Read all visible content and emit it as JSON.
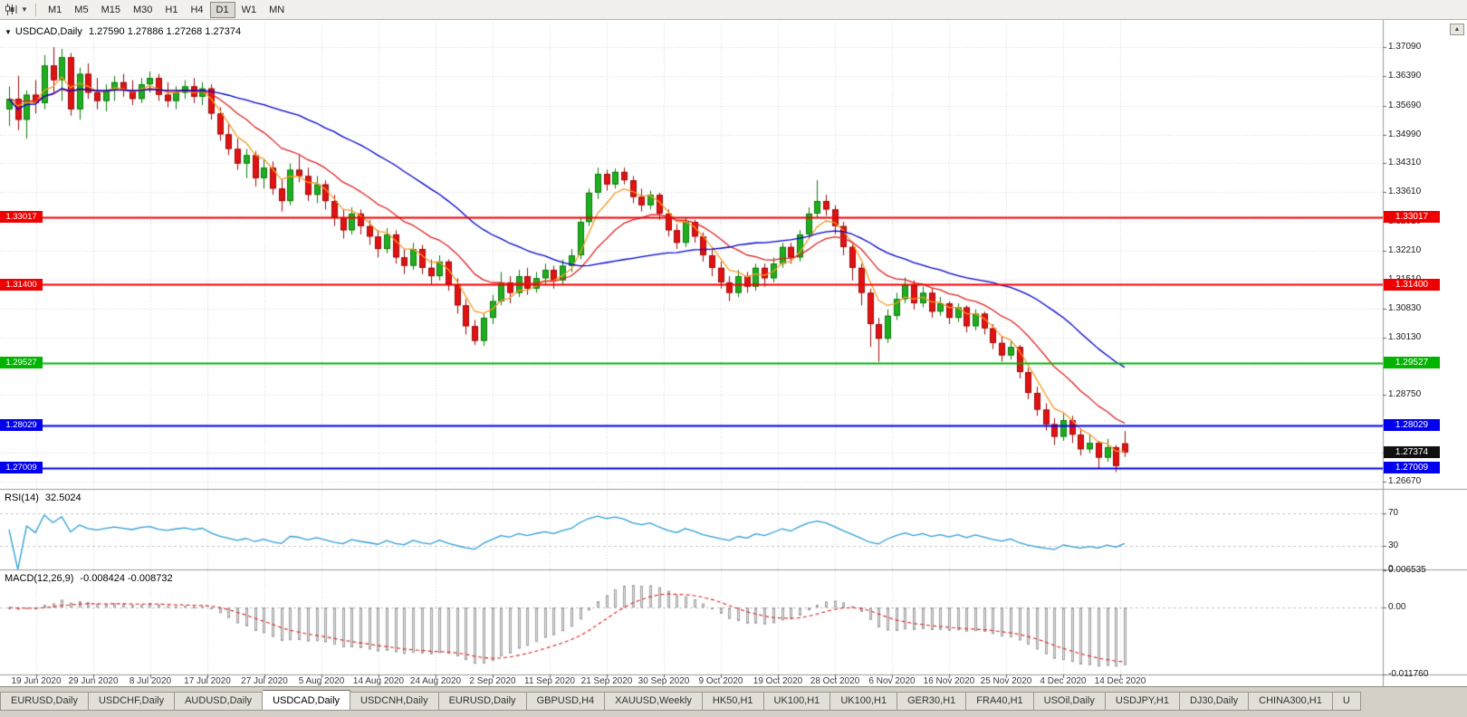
{
  "toolbar": {
    "timeframes": [
      "M1",
      "M5",
      "M15",
      "M30",
      "H1",
      "H4",
      "D1",
      "W1",
      "MN"
    ],
    "active": "D1"
  },
  "main_header": {
    "symbol": "USDCAD,Daily",
    "ohlc": "1.27590 1.27886 1.27268 1.27374"
  },
  "chart_data": {
    "type": "candlestick",
    "symbol": "USDCAD",
    "timeframe": "Daily",
    "ohlc_display": {
      "open": "1.27590",
      "high": "1.27886",
      "low": "1.27268",
      "close": "1.27374"
    },
    "x_axis_labels": [
      "19 Jun 2020",
      "29 Jun 2020",
      "8 Jul 2020",
      "17 Jul 2020",
      "27 Jul 2020",
      "5 Aug 2020",
      "14 Aug 2020",
      "24 Aug 2020",
      "2 Sep 2020",
      "11 Sep 2020",
      "21 Sep 2020",
      "30 Sep 2020",
      "9 Oct 2020",
      "19 Oct 2020",
      "28 Oct 2020",
      "6 Nov 2020",
      "16 Nov 2020",
      "25 Nov 2020",
      "4 Dec 2020",
      "14 Dec 2020"
    ],
    "y_axis_ticks": [
      "1.37090",
      "1.36390",
      "1.35690",
      "1.34990",
      "1.34310",
      "1.33610",
      "1.32910",
      "1.32210",
      "1.31510",
      "1.30830",
      "1.30130",
      "1.29430",
      "1.28750",
      "1.28050",
      "1.27370",
      "1.26670"
    ],
    "y_range": {
      "top": 1.377,
      "bottom": 1.265
    },
    "up_color": "#1fae1f",
    "down_color": "#e31212",
    "candles": [
      [
        1.356,
        1.3615,
        1.352,
        1.3585
      ],
      [
        1.3585,
        1.364,
        1.351,
        1.3535
      ],
      [
        1.3535,
        1.3605,
        1.349,
        1.3595
      ],
      [
        1.3595,
        1.363,
        1.355,
        1.3575
      ],
      [
        1.3575,
        1.369,
        1.356,
        1.3665
      ],
      [
        1.3665,
        1.3709,
        1.36,
        1.363
      ],
      [
        1.363,
        1.3705,
        1.358,
        1.3685
      ],
      [
        1.3685,
        1.3695,
        1.3545,
        1.356
      ],
      [
        1.356,
        1.366,
        1.3535,
        1.3645
      ],
      [
        1.3645,
        1.367,
        1.3585,
        1.36
      ],
      [
        1.36,
        1.3635,
        1.356,
        1.358
      ],
      [
        1.358,
        1.362,
        1.3555,
        1.3605
      ],
      [
        1.3605,
        1.364,
        1.358,
        1.3625
      ],
      [
        1.3625,
        1.3645,
        1.359,
        1.3605
      ],
      [
        1.3605,
        1.363,
        1.357,
        1.3585
      ],
      [
        1.3585,
        1.3635,
        1.3575,
        1.362
      ],
      [
        1.362,
        1.365,
        1.36,
        1.3635
      ],
      [
        1.3635,
        1.3645,
        1.358,
        1.3595
      ],
      [
        1.3595,
        1.3625,
        1.3565,
        1.358
      ],
      [
        1.358,
        1.3615,
        1.356,
        1.36
      ],
      [
        1.36,
        1.363,
        1.3585,
        1.3615
      ],
      [
        1.3615,
        1.3635,
        1.3575,
        1.359
      ],
      [
        1.359,
        1.3625,
        1.357,
        1.361
      ],
      [
        1.361,
        1.362,
        1.3535,
        1.355
      ],
      [
        1.355,
        1.3565,
        1.3485,
        1.35
      ],
      [
        1.35,
        1.3525,
        1.345,
        1.3465
      ],
      [
        1.3465,
        1.349,
        1.3415,
        1.343
      ],
      [
        1.343,
        1.3465,
        1.3395,
        1.345
      ],
      [
        1.345,
        1.346,
        1.3375,
        1.3395
      ],
      [
        1.3395,
        1.344,
        1.337,
        1.342
      ],
      [
        1.342,
        1.3435,
        1.3355,
        1.337
      ],
      [
        1.337,
        1.339,
        1.3315,
        1.334
      ],
      [
        1.334,
        1.343,
        1.333,
        1.3415
      ],
      [
        1.3415,
        1.345,
        1.3385,
        1.34
      ],
      [
        1.34,
        1.342,
        1.334,
        1.3355
      ],
      [
        1.3355,
        1.34,
        1.3335,
        1.338
      ],
      [
        1.338,
        1.339,
        1.332,
        1.334
      ],
      [
        1.334,
        1.3355,
        1.328,
        1.33
      ],
      [
        1.33,
        1.332,
        1.325,
        1.327
      ],
      [
        1.327,
        1.3325,
        1.326,
        1.331
      ],
      [
        1.331,
        1.332,
        1.326,
        1.328
      ],
      [
        1.328,
        1.3295,
        1.3235,
        1.3255
      ],
      [
        1.3255,
        1.327,
        1.3205,
        1.3225
      ],
      [
        1.3225,
        1.3275,
        1.3215,
        1.326
      ],
      [
        1.326,
        1.327,
        1.319,
        1.3205
      ],
      [
        1.3205,
        1.3225,
        1.3165,
        1.3185
      ],
      [
        1.3185,
        1.324,
        1.3175,
        1.3225
      ],
      [
        1.3225,
        1.3235,
        1.3165,
        1.318
      ],
      [
        1.318,
        1.32,
        1.314,
        1.316
      ],
      [
        1.316,
        1.321,
        1.315,
        1.3195
      ],
      [
        1.3195,
        1.32,
        1.3125,
        1.314
      ],
      [
        1.314,
        1.3155,
        1.307,
        1.309
      ],
      [
        1.309,
        1.3105,
        1.302,
        1.304
      ],
      [
        1.304,
        1.3055,
        1.2995,
        1.3005
      ],
      [
        1.3005,
        1.307,
        1.2993,
        1.306
      ],
      [
        1.306,
        1.3115,
        1.3045,
        1.31
      ],
      [
        1.31,
        1.317,
        1.309,
        1.3145
      ],
      [
        1.3145,
        1.316,
        1.3095,
        1.312
      ],
      [
        1.312,
        1.3175,
        1.311,
        1.316
      ],
      [
        1.316,
        1.318,
        1.3115,
        1.313
      ],
      [
        1.313,
        1.317,
        1.312,
        1.3155
      ],
      [
        1.3155,
        1.319,
        1.314,
        1.3175
      ],
      [
        1.3175,
        1.3185,
        1.313,
        1.315
      ],
      [
        1.315,
        1.32,
        1.314,
        1.3185
      ],
      [
        1.3185,
        1.3225,
        1.317,
        1.321
      ],
      [
        1.321,
        1.33,
        1.32,
        1.329
      ],
      [
        1.329,
        1.337,
        1.328,
        1.336
      ],
      [
        1.336,
        1.342,
        1.3345,
        1.3405
      ],
      [
        1.3405,
        1.3415,
        1.3365,
        1.338
      ],
      [
        1.338,
        1.3418,
        1.337,
        1.341
      ],
      [
        1.341,
        1.342,
        1.338,
        1.339
      ],
      [
        1.339,
        1.34,
        1.3335,
        1.335
      ],
      [
        1.335,
        1.337,
        1.3315,
        1.333
      ],
      [
        1.333,
        1.3365,
        1.332,
        1.3355
      ],
      [
        1.3355,
        1.336,
        1.3295,
        1.331
      ],
      [
        1.331,
        1.332,
        1.3255,
        1.327
      ],
      [
        1.327,
        1.3285,
        1.3225,
        1.324
      ],
      [
        1.324,
        1.33,
        1.323,
        1.329
      ],
      [
        1.329,
        1.3295,
        1.324,
        1.3255
      ],
      [
        1.3255,
        1.3265,
        1.3195,
        1.321
      ],
      [
        1.321,
        1.3225,
        1.316,
        1.318
      ],
      [
        1.318,
        1.3195,
        1.313,
        1.3145
      ],
      [
        1.3145,
        1.316,
        1.31,
        1.312
      ],
      [
        1.312,
        1.3175,
        1.311,
        1.316
      ],
      [
        1.316,
        1.317,
        1.312,
        1.3135
      ],
      [
        1.3135,
        1.319,
        1.3125,
        1.318
      ],
      [
        1.318,
        1.319,
        1.3135,
        1.3155
      ],
      [
        1.3155,
        1.3205,
        1.3145,
        1.319
      ],
      [
        1.319,
        1.324,
        1.318,
        1.323
      ],
      [
        1.323,
        1.324,
        1.319,
        1.3205
      ],
      [
        1.3205,
        1.327,
        1.3195,
        1.326
      ],
      [
        1.326,
        1.3325,
        1.325,
        1.331
      ],
      [
        1.331,
        1.339,
        1.33,
        1.334
      ],
      [
        1.334,
        1.3355,
        1.3305,
        1.332
      ],
      [
        1.332,
        1.333,
        1.326,
        1.328
      ],
      [
        1.328,
        1.329,
        1.321,
        1.323
      ],
      [
        1.323,
        1.324,
        1.315,
        1.318
      ],
      [
        1.318,
        1.319,
        1.309,
        1.312
      ],
      [
        1.312,
        1.313,
        1.299,
        1.3045
      ],
      [
        1.3045,
        1.306,
        1.2955,
        1.301
      ],
      [
        1.301,
        1.308,
        1.3,
        1.3065
      ],
      [
        1.3065,
        1.312,
        1.3055,
        1.3105
      ],
      [
        1.3105,
        1.3157,
        1.3095,
        1.314
      ],
      [
        1.314,
        1.315,
        1.308,
        1.3095
      ],
      [
        1.3095,
        1.3135,
        1.3085,
        1.312
      ],
      [
        1.312,
        1.313,
        1.306,
        1.3075
      ],
      [
        1.3075,
        1.311,
        1.3065,
        1.3095
      ],
      [
        1.3095,
        1.31,
        1.3045,
        1.306
      ],
      [
        1.306,
        1.3095,
        1.305,
        1.3085
      ],
      [
        1.3085,
        1.309,
        1.3025,
        1.304
      ],
      [
        1.304,
        1.308,
        1.303,
        1.307
      ],
      [
        1.307,
        1.3075,
        1.302,
        1.3035
      ],
      [
        1.3035,
        1.3045,
        1.2985,
        1.3
      ],
      [
        1.3,
        1.3015,
        1.2955,
        1.297
      ],
      [
        1.297,
        1.3005,
        1.296,
        1.299
      ],
      [
        1.299,
        1.2995,
        1.2915,
        1.293
      ],
      [
        1.293,
        1.294,
        1.2865,
        1.288
      ],
      [
        1.288,
        1.2895,
        1.2825,
        1.284
      ],
      [
        1.284,
        1.2855,
        1.279,
        1.2805
      ],
      [
        1.2805,
        1.282,
        1.2755,
        1.2775
      ],
      [
        1.2775,
        1.283,
        1.2765,
        1.2815
      ],
      [
        1.2815,
        1.2825,
        1.276,
        1.278
      ],
      [
        1.278,
        1.2795,
        1.273,
        1.2745
      ],
      [
        1.2745,
        1.278,
        1.2735,
        1.276
      ],
      [
        1.276,
        1.2765,
        1.27,
        1.2725
      ],
      [
        1.2725,
        1.277,
        1.2715,
        1.275
      ],
      [
        1.275,
        1.2755,
        1.269,
        1.2705
      ],
      [
        1.2759,
        1.27886,
        1.27268,
        1.27374
      ]
    ],
    "moving_averages": [
      {
        "name": "ma-fast",
        "period": 5,
        "method": "ema",
        "color": "#f59a23"
      },
      {
        "name": "ma-mid",
        "period": 14,
        "method": "ema",
        "color": "#dd2222"
      },
      {
        "name": "ma-slow",
        "period": 30,
        "method": "sma",
        "color": "#0000cc"
      }
    ],
    "horizontal_lines": [
      {
        "label": "1.33017",
        "value": 1.33017,
        "color": "#ee0000"
      },
      {
        "label": "1.31400",
        "value": 1.314,
        "color": "#ee0000"
      },
      {
        "label": "1.29527",
        "value": 1.29527,
        "color": "#00b400"
      },
      {
        "label": "1.28029",
        "value": 1.28029,
        "color": "#0000ee"
      },
      {
        "label": "1.27009",
        "value": 1.27009,
        "color": "#0000ee"
      }
    ],
    "current_price": {
      "label": "1.27374",
      "value": 1.27374,
      "color": "#101010"
    },
    "rsi": {
      "label": "RSI(14)",
      "value": "32.5024",
      "period": 14,
      "levels": [
        70,
        30
      ],
      "scale_ticks": [
        "70",
        "30",
        "0"
      ],
      "color": "#2f9fd6"
    },
    "macd": {
      "label": "MACD(12,26,9)",
      "values": "-0.008424 -0.008732",
      "fast": 12,
      "slow": 26,
      "signal": 9,
      "scale_ticks": [
        "0.006535",
        "0.00",
        "-0.011760"
      ],
      "scale_max": 0.006535,
      "scale_min": -0.01176,
      "hist_fill": "#e2e2e2",
      "hist_stroke": "#a0a0a0",
      "signal_color": "#dd2020"
    }
  },
  "tabs": {
    "items": [
      "EURUSD,Daily",
      "USDCHF,Daily",
      "AUDUSD,Daily",
      "USDCAD,Daily",
      "USDCNH,Daily",
      "EURUSD,Daily",
      "GBPUSD,H4",
      "XAUUSD,Weekly",
      "HK50,H1",
      "UK100,H1",
      "UK100,H1",
      "GER30,H1",
      "FRA40,H1",
      "USOil,Daily",
      "USDJPY,H1",
      "DJ30,Daily",
      "CHINA300,H1"
    ],
    "selected_index": 3,
    "overflow_label": "U"
  }
}
